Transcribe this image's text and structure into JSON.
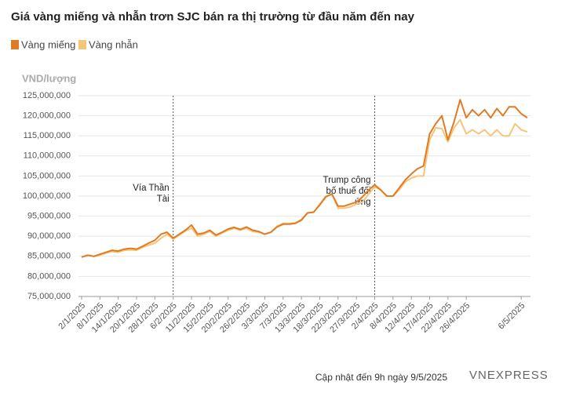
{
  "chart_data": {
    "type": "line",
    "title": "Giá vàng miếng và nhẫn trơn SJC bán ra thị trường từ đầu năm đến nay",
    "y_label": "VND/lượng",
    "categories": [
      "2/1/2025",
      null,
      null,
      "8/1/2025",
      null,
      null,
      "14/1/2025",
      null,
      null,
      "20/1/2025",
      null,
      null,
      "28/1/2025",
      null,
      null,
      "6/2/2025",
      null,
      null,
      "11/2/2025",
      null,
      null,
      "15/2/2025",
      null,
      null,
      "20/2/2025",
      null,
      null,
      "26/2/2025",
      null,
      null,
      "3/3/2025",
      null,
      null,
      "7/3/2025",
      null,
      null,
      "13/3/2025",
      null,
      null,
      "18/3/2025",
      null,
      null,
      "22/3/2025",
      null,
      null,
      "27/3/2025",
      null,
      null,
      "2/4/2025",
      null,
      null,
      "8/4/2025",
      null,
      null,
      "12/4/2025",
      null,
      null,
      "17/4/2025",
      null,
      null,
      "22/4/2025",
      null,
      null,
      "26/4/2025",
      null,
      null,
      null,
      null,
      null,
      null,
      null,
      null,
      "6/5/2025",
      null
    ],
    "series": [
      {
        "name": "Vàng miếng",
        "color": "#e07b24",
        "values": [
          84800000,
          85300000,
          85000000,
          85500000,
          86000000,
          86500000,
          86300000,
          86800000,
          87000000,
          86800000,
          87500000,
          88300000,
          89000000,
          90500000,
          91000000,
          89500000,
          90500000,
          91500000,
          92800000,
          90500000,
          90800000,
          91500000,
          90300000,
          91000000,
          91800000,
          92200000,
          91700000,
          92300000,
          91500000,
          91200000,
          90500000,
          91000000,
          92300000,
          93000000,
          93000000,
          93200000,
          94000000,
          95800000,
          96000000,
          97800000,
          99800000,
          100500000,
          97500000,
          97500000,
          98000000,
          98500000,
          99800000,
          101500000,
          102800000,
          101500000,
          100000000,
          100000000,
          102000000,
          104000000,
          105500000,
          106800000,
          107500000,
          115500000,
          118000000,
          120000000,
          114000000,
          118500000,
          124000000,
          119500000,
          121500000,
          120000000,
          121500000,
          119500000,
          121800000,
          120000000,
          122200000,
          122200000,
          120500000,
          119500000
        ]
      },
      {
        "name": "Vàng nhẫn",
        "color": "#f5c57a",
        "values": [
          84800000,
          85200000,
          85000000,
          85300000,
          85800000,
          86200000,
          86000000,
          86500000,
          86600000,
          86500000,
          87200000,
          87800000,
          88300000,
          89500000,
          90500000,
          89300000,
          90300000,
          91300000,
          92000000,
          90000000,
          90500000,
          91200000,
          90000000,
          90800000,
          91500000,
          92000000,
          91500000,
          92000000,
          91200000,
          91000000,
          90500000,
          91000000,
          92500000,
          93200000,
          93200000,
          93300000,
          94200000,
          95800000,
          96000000,
          98000000,
          100000000,
          100500000,
          97000000,
          97000000,
          97300000,
          98000000,
          98500000,
          100500000,
          102300000,
          101500000,
          100000000,
          100000000,
          101500000,
          103500000,
          104500000,
          105000000,
          105000000,
          114000000,
          117000000,
          116800000,
          113500000,
          117000000,
          119000000,
          115500000,
          116500000,
          115500000,
          116500000,
          115000000,
          116500000,
          115000000,
          115000000,
          118000000,
          116500000,
          116000000
        ]
      }
    ],
    "ylim": [
      75000000,
      125000000
    ],
    "yticks": [
      {
        "value": 75000000,
        "label": "75,000,000"
      },
      {
        "value": 80000000,
        "label": "80,000,000"
      },
      {
        "value": 85000000,
        "label": "85,000,000"
      },
      {
        "value": 90000000,
        "label": "90,000,000"
      },
      {
        "value": 95000000,
        "label": "95,000,000"
      },
      {
        "value": 100000000,
        "label": "100,000,000"
      },
      {
        "value": 105000000,
        "label": "105,000,000"
      },
      {
        "value": 110000000,
        "label": "110,000,000"
      },
      {
        "value": 115000000,
        "label": "115,000,000"
      },
      {
        "value": 120000000,
        "label": "120,000,000"
      },
      {
        "value": 125000000,
        "label": "125,000,000"
      }
    ],
    "grid": true,
    "annotations": [
      {
        "at": "6/2/2025",
        "lines": [
          "Vía Thần",
          "Tài"
        ]
      },
      {
        "at": "2/4/2025",
        "lines": [
          "Trump công",
          "bố thuế đối",
          "ứng"
        ]
      }
    ],
    "footnote": "Cập nhật đến 9h ngày 9/5/2025",
    "logo": "VNEXPRESS"
  }
}
